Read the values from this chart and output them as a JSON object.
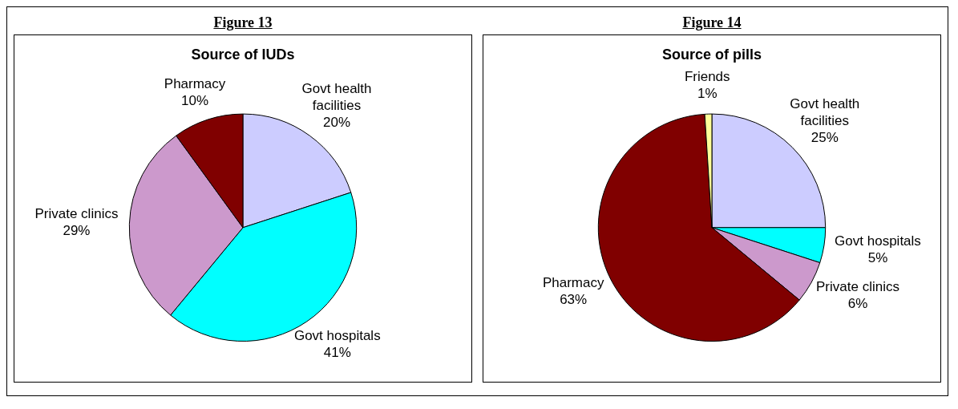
{
  "chart_data": [
    {
      "type": "pie",
      "title": "Source of IUDs",
      "annotations": [
        "Figure 13"
      ],
      "categories": [
        "Govt health facilities",
        "Govt hospitals",
        "Private clinics",
        "Pharmacy"
      ],
      "values": [
        20,
        41,
        29,
        10
      ],
      "value_labels": [
        "20%",
        "41%",
        "29%",
        "10%"
      ],
      "colors": [
        "#ccccff",
        "#00ffff",
        "#cc99cc",
        "#800000"
      ],
      "legend": false
    },
    {
      "type": "pie",
      "title": "Source of pills",
      "annotations": [
        "Figure 14"
      ],
      "categories": [
        "Govt health facilities",
        "Govt hospitals",
        "Private clinics",
        "Pharmacy",
        "Friends"
      ],
      "values": [
        25,
        5,
        6,
        63,
        1
      ],
      "value_labels": [
        "25%",
        "5%",
        "6%",
        "63%",
        "1%"
      ],
      "colors": [
        "#ccccff",
        "#00ffff",
        "#cc99cc",
        "#800000",
        "#ffff99"
      ],
      "legend": false
    }
  ]
}
